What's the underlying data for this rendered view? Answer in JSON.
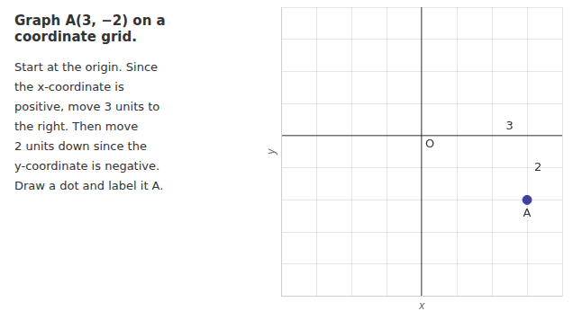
{
  "chart_data": {
    "type": "scatter",
    "title": "Graph A(3, −2) on a coordinate grid.",
    "subtitle": [
      "Start at the origin. Since",
      "the x-coordinate is",
      "positive, move 3 units to",
      "the right. Then move",
      "2 units down since the",
      "y-coordinate is negative.",
      "Draw a dot and label it A."
    ],
    "x_label": "x",
    "y_label": "y",
    "x": [
      3
    ],
    "values": [
      -2
    ],
    "color": "#4040a0",
    "xlim": [
      -4,
      4
    ],
    "ylim": [
      -5,
      4
    ],
    "xticks": [
      -4,
      -3,
      -2,
      -1,
      0,
      1,
      2,
      3,
      4
    ],
    "yticks": [
      -5,
      -4,
      -3,
      -2,
      -1,
      0,
      1,
      2,
      3,
      4
    ],
    "grid": true,
    "tick_labels": false,
    "annotations": [
      {
        "text": "O",
        "x": 0,
        "y": 0
      },
      {
        "text": "3",
        "x": 2.5,
        "y": 0
      },
      {
        "text": "2",
        "x": 3,
        "y": -1
      },
      {
        "text": "A",
        "x": 3,
        "y": -2
      }
    ]
  }
}
